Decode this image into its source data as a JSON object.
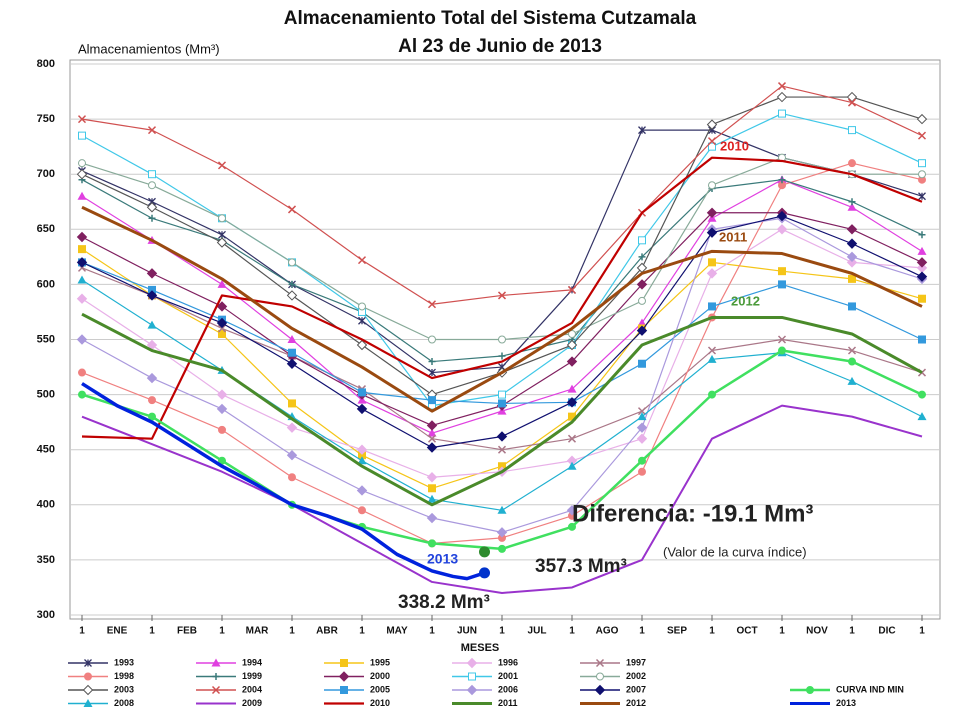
{
  "chart_data": {
    "type": "line",
    "title": "Almacenamiento Total del Sistema Cutzamala",
    "subtitle": "Al 23 de Junio de 2013",
    "y_label": "Almacenamientos (Mm³)",
    "x_label": "MESES",
    "xlim": [
      0,
      12
    ],
    "xticks": [
      {
        "value": 0,
        "label": "1"
      },
      {
        "value": 1,
        "label": "1"
      },
      {
        "value": 2,
        "label": "1"
      },
      {
        "value": 3,
        "label": "1"
      },
      {
        "value": 4,
        "label": "1"
      },
      {
        "value": 5,
        "label": "1"
      },
      {
        "value": 6,
        "label": "1"
      },
      {
        "value": 7,
        "label": "1"
      },
      {
        "value": 8,
        "label": "1"
      },
      {
        "value": 9,
        "label": "1"
      },
      {
        "value": 10,
        "label": "1"
      },
      {
        "value": 11,
        "label": "1"
      },
      {
        "value": 12,
        "label": "1"
      }
    ],
    "months": [
      "ENE",
      "FEB",
      "MAR",
      "ABR",
      "MAY",
      "JUN",
      "JUL",
      "AGO",
      "SEP",
      "OCT",
      "NOV",
      "DIC"
    ],
    "ylim": [
      300,
      800
    ],
    "yticks": [
      300,
      350,
      400,
      450,
      500,
      550,
      600,
      650,
      700,
      750,
      800
    ],
    "grid": true,
    "x": [
      0,
      1,
      2,
      3,
      4,
      5,
      6,
      7,
      8,
      9,
      10,
      11,
      12
    ],
    "series": [
      {
        "name": "1993",
        "color": "#333366",
        "marker": "star",
        "values": [
          703,
          675,
          645,
          600,
          567,
          520,
          525,
          595,
          740,
          740,
          715,
          700,
          680
        ]
      },
      {
        "name": "1994",
        "color": "#e040e0",
        "marker": "triangle",
        "values": [
          680,
          640,
          600,
          550,
          495,
          465,
          485,
          505,
          565,
          660,
          695,
          670,
          630
        ]
      },
      {
        "name": "1995",
        "color": "#f5c518",
        "marker": "square",
        "values": [
          632,
          590,
          555,
          492,
          445,
          415,
          435,
          480,
          560,
          620,
          612,
          605,
          587
        ]
      },
      {
        "name": "1996",
        "color": "#e8b0e8",
        "marker": "diamond",
        "values": [
          587,
          545,
          500,
          470,
          450,
          425,
          430,
          440,
          460,
          610,
          650,
          620,
          615
        ]
      },
      {
        "name": "1997",
        "color": "#aa7788",
        "marker": "x",
        "values": [
          615,
          590,
          560,
          535,
          505,
          460,
          450,
          460,
          485,
          540,
          550,
          540,
          520
        ]
      },
      {
        "name": "1998",
        "color": "#f08080",
        "marker": "circle",
        "values": [
          520,
          495,
          468,
          425,
          395,
          365,
          370,
          390,
          430,
          570,
          690,
          710,
          695
        ]
      },
      {
        "name": "1999",
        "color": "#3a7a7a",
        "marker": "plus",
        "values": [
          695,
          660,
          640,
          600,
          575,
          530,
          535,
          550,
          625,
          687,
          695,
          675,
          645
        ]
      },
      {
        "name": "2000",
        "color": "#802060",
        "marker": "diamond",
        "values": [
          643,
          610,
          580,
          535,
          500,
          472,
          490,
          530,
          600,
          665,
          665,
          650,
          620
        ]
      },
      {
        "name": "2001",
        "color": "#40c8e8",
        "marker": "square-open",
        "values": [
          735,
          700,
          660,
          620,
          575,
          490,
          500,
          545,
          640,
          725,
          755,
          740,
          710
        ]
      },
      {
        "name": "2002",
        "color": "#88aa99",
        "marker": "circle-open",
        "values": [
          710,
          690,
          660,
          620,
          580,
          550,
          550,
          555,
          585,
          690,
          715,
          700,
          700
        ]
      },
      {
        "name": "2003",
        "color": "#555555",
        "marker": "diamond-open",
        "values": [
          700,
          670,
          638,
          590,
          545,
          500,
          520,
          545,
          615,
          745,
          770,
          770,
          750
        ]
      },
      {
        "name": "2004",
        "color": "#d05050",
        "marker": "x",
        "values": [
          750,
          740,
          708,
          668,
          622,
          582,
          590,
          595,
          665,
          730,
          780,
          765,
          735
        ]
      },
      {
        "name": "2005",
        "color": "#3399dd",
        "marker": "square",
        "values": [
          620,
          595,
          568,
          538,
          502,
          495,
          492,
          493,
          528,
          580,
          600,
          580,
          550
        ]
      },
      {
        "name": "2006",
        "color": "#aa99dd",
        "marker": "diamond",
        "values": [
          550,
          515,
          487,
          445,
          413,
          388,
          375,
          395,
          470,
          650,
          660,
          625,
          605
        ]
      },
      {
        "name": "2007",
        "color": "#101070",
        "marker": "diamond",
        "values": [
          620,
          590,
          565,
          528,
          487,
          452,
          462,
          493,
          558,
          647,
          662,
          637,
          607
        ]
      },
      {
        "name": "2008",
        "color": "#20b0d0",
        "marker": "triangle",
        "values": [
          604,
          563,
          522,
          480,
          440,
          405,
          395,
          435,
          480,
          532,
          538,
          512,
          480
        ]
      },
      {
        "name": "2009",
        "color": "#9933cc",
        "marker": "none",
        "values": [
          480,
          455,
          430,
          400,
          365,
          330,
          320,
          325,
          350,
          460,
          490,
          480,
          462
        ]
      },
      {
        "name": "2010",
        "color": "#c00000",
        "marker": "none",
        "values": [
          462,
          460,
          590,
          580,
          550,
          515,
          530,
          565,
          665,
          715,
          712,
          700,
          675
        ]
      },
      {
        "name": "2011",
        "color": "#4a8a2a",
        "marker": "none",
        "values": [
          573,
          540,
          522,
          478,
          435,
          400,
          430,
          475,
          545,
          570,
          570,
          555,
          520
        ]
      },
      {
        "name": "2012",
        "color": "#9a4a10",
        "marker": "none",
        "values": [
          670,
          640,
          605,
          560,
          525,
          485,
          520,
          560,
          610,
          630,
          628,
          610,
          580
        ]
      },
      {
        "name": "CURVA IND MIN",
        "color": "#40e060",
        "marker": "circle",
        "values": [
          500,
          480,
          440,
          400,
          380,
          365,
          360,
          380,
          440,
          500,
          540,
          530,
          500
        ]
      },
      {
        "name": "2013",
        "color": "#0022dd",
        "marker": "none",
        "x": [
          0,
          0.5,
          1,
          1.5,
          2,
          2.5,
          3,
          3.5,
          4,
          4.5,
          5,
          5.3,
          5.5,
          5.75
        ],
        "values": [
          510,
          490,
          475,
          455,
          435,
          418,
          400,
          390,
          378,
          355,
          340,
          335,
          333,
          338.2
        ]
      }
    ],
    "highlights": [
      {
        "x": 5.75,
        "value": 357.3,
        "label": "357.3 Mm³",
        "color": "#2e8b2e"
      },
      {
        "x": 5.75,
        "value": 338.2,
        "label": "338.2 Mm³",
        "color": "#0033cc"
      }
    ],
    "annotations": [
      {
        "text": "2010",
        "color": "#dd2222"
      },
      {
        "text": "2011",
        "color": "#9a4a10"
      },
      {
        "text": "2012",
        "color": "#4a9a3a"
      },
      {
        "text": "2013",
        "color": "#2244dd"
      },
      {
        "text": "Diferencia: -19.1 Mm³",
        "color": "#222222"
      },
      {
        "text": "(Valor de la curva índice)",
        "color": "#222222"
      }
    ]
  }
}
